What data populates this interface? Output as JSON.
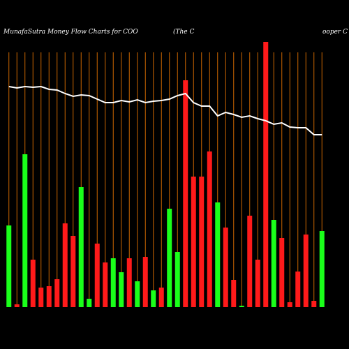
{
  "chart_data": {
    "type": "bar",
    "title": "MunafaSutra  Money Flow  Charts for COO",
    "title_parts": [
      "(The    C",
      "ooper C"
    ],
    "categories": [
      null,
      null,
      null,
      null,
      null,
      null,
      null,
      null,
      null,
      null,
      null,
      null,
      null,
      null,
      null,
      null,
      null,
      null,
      null,
      null,
      null,
      null,
      null,
      null,
      null,
      null,
      null,
      null,
      null,
      null,
      null,
      null,
      null,
      null,
      null,
      null,
      null,
      null,
      null,
      null
    ],
    "series": [
      {
        "color": "#ff1a1a",
        "values": [
          null,
          4,
          null,
          68,
          28,
          30,
          40,
          120,
          102,
          null,
          null,
          91,
          64,
          null,
          null,
          70,
          null,
          72,
          null,
          28,
          null,
          null,
          325,
          187,
          187,
          223,
          null,
          114,
          39,
          null,
          131,
          68,
          380,
          null,
          99,
          7,
          51,
          104,
          9,
          null
        ]
      },
      {
        "color": "#1aff1a",
        "values": [
          117,
          null,
          219,
          null,
          null,
          null,
          null,
          null,
          null,
          172,
          12,
          null,
          null,
          70,
          50,
          null,
          37,
          null,
          24,
          null,
          141,
          79,
          null,
          null,
          null,
          null,
          150,
          null,
          null,
          2,
          null,
          null,
          null,
          125,
          null,
          null,
          null,
          null,
          null,
          109
        ]
      }
    ],
    "line": {
      "color": "#ffffff",
      "values": [
        316,
        314,
        316,
        315,
        316,
        312,
        311,
        306,
        302,
        304,
        303,
        298,
        293,
        293,
        296,
        294,
        297,
        293,
        295,
        296,
        298,
        303,
        306,
        293,
        288,
        288,
        274,
        279,
        276,
        272,
        274,
        270,
        267,
        262,
        264,
        258,
        257,
        257,
        247,
        247
      ]
    },
    "ylim": [
      0,
      380
    ],
    "guide_color": "#cc6600"
  }
}
